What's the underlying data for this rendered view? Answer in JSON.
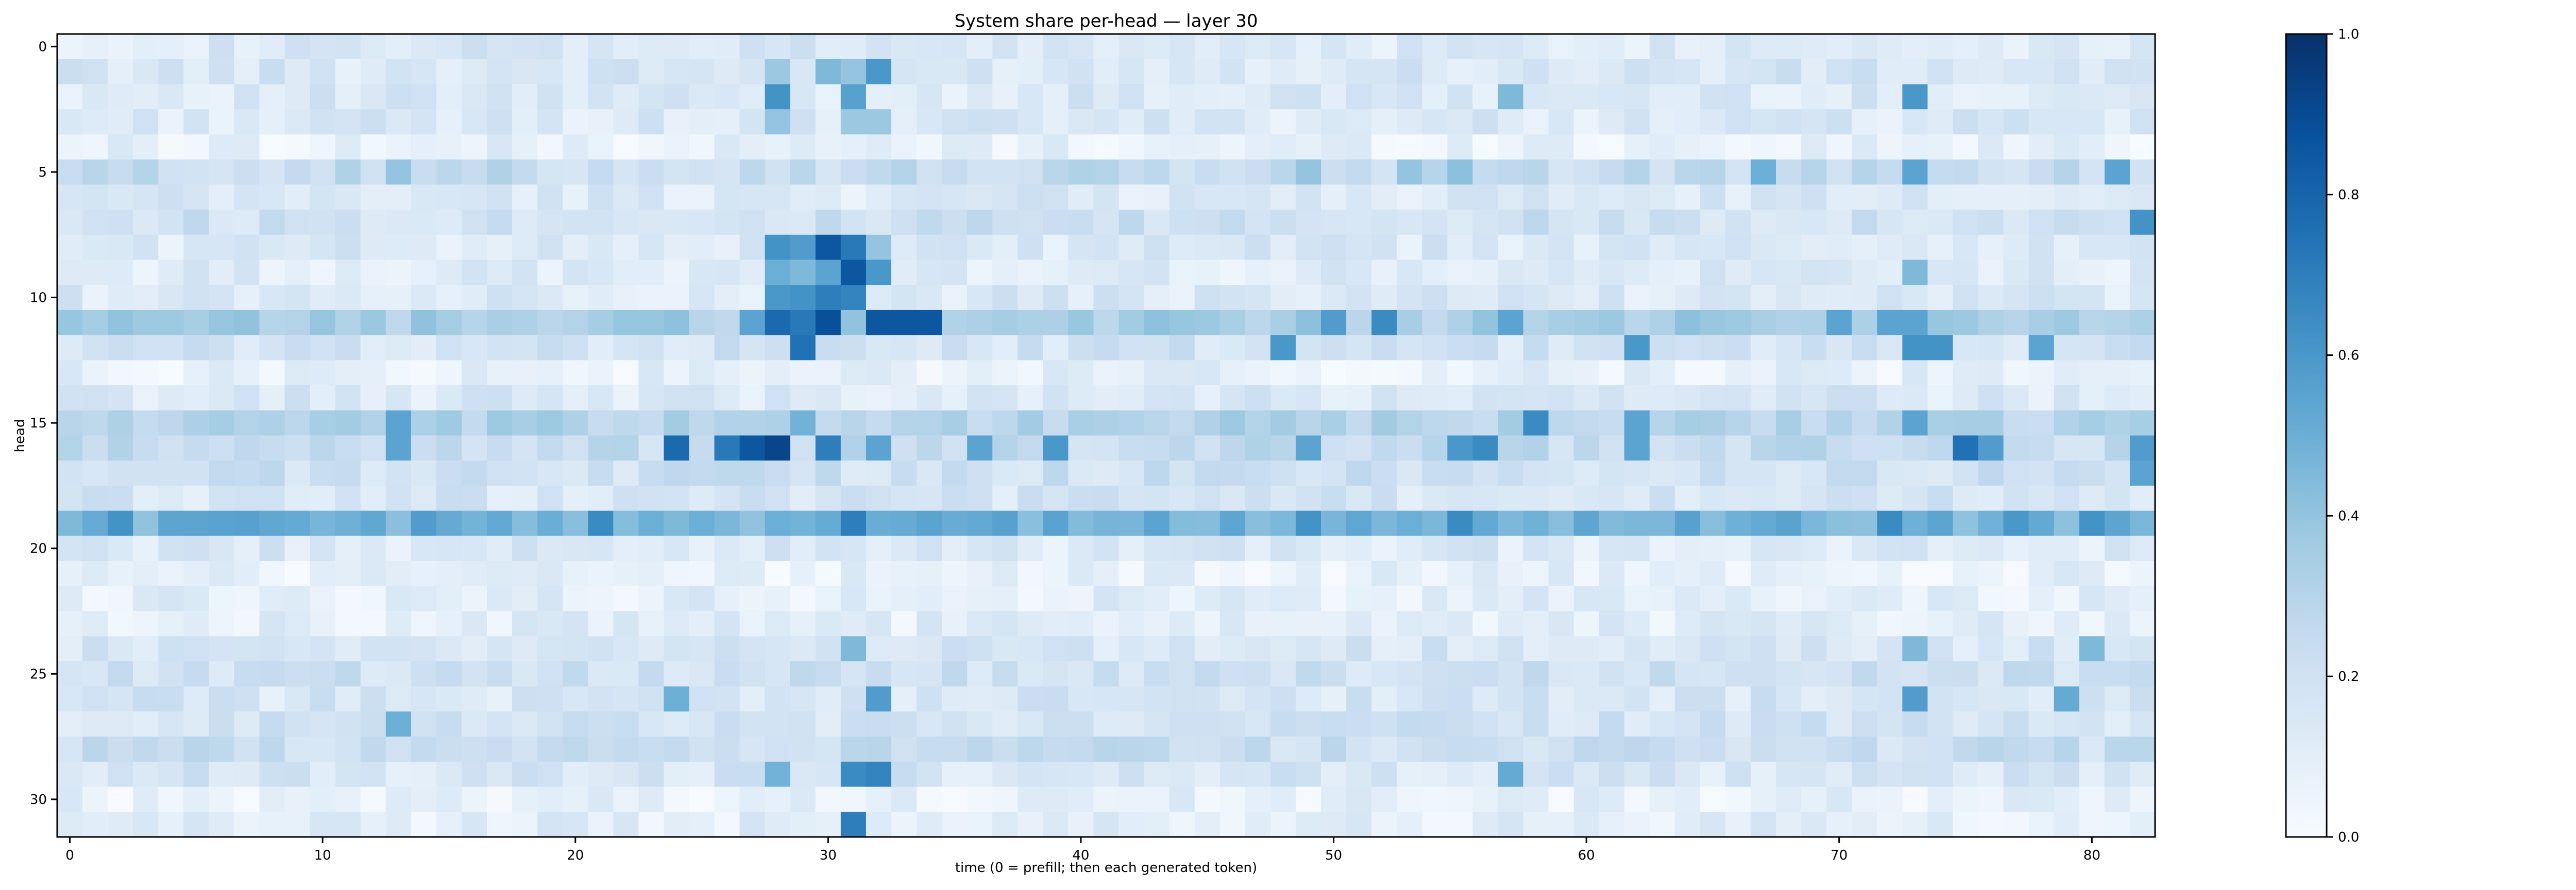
{
  "chart_data": {
    "type": "heatmap",
    "title": "System share per-head — layer 30",
    "xlabel": "time (0 = prefill; then each generated token)",
    "ylabel": "head",
    "n_cols": 83,
    "n_rows": 32,
    "xlim": [
      -0.5,
      82.5
    ],
    "ylim": [
      31.5,
      -0.5
    ],
    "x_ticks": [
      "0",
      "10",
      "20",
      "30",
      "40",
      "50",
      "60",
      "70",
      "80"
    ],
    "y_ticks": [
      "0",
      "5",
      "10",
      "15",
      "20",
      "25",
      "30"
    ],
    "colormap": "Blues",
    "colorbar": {
      "range": [
        0.0,
        1.0
      ],
      "ticks": [
        "0.0",
        "0.2",
        "0.4",
        "0.6",
        "0.8",
        "1.0"
      ]
    },
    "row_base": [
      0.14,
      0.16,
      0.14,
      0.14,
      0.08,
      0.24,
      0.14,
      0.2,
      0.14,
      0.12,
      0.14,
      0.34,
      0.18,
      0.08,
      0.14,
      0.3,
      0.24,
      0.2,
      0.16,
      0.48,
      0.14,
      0.08,
      0.1,
      0.1,
      0.16,
      0.2,
      0.16,
      0.18,
      0.22,
      0.16,
      0.08,
      0.1
    ],
    "overrides": [
      [
        1,
        28,
        0.38
      ],
      [
        1,
        30,
        0.45
      ],
      [
        1,
        31,
        0.4
      ],
      [
        1,
        32,
        0.6
      ],
      [
        2,
        28,
        0.62
      ],
      [
        2,
        31,
        0.56
      ],
      [
        2,
        57,
        0.45
      ],
      [
        2,
        73,
        0.6
      ],
      [
        3,
        28,
        0.4
      ],
      [
        3,
        31,
        0.38
      ],
      [
        3,
        32,
        0.38
      ],
      [
        5,
        13,
        0.4
      ],
      [
        5,
        49,
        0.4
      ],
      [
        5,
        53,
        0.4
      ],
      [
        5,
        55,
        0.42
      ],
      [
        5,
        67,
        0.5
      ],
      [
        5,
        73,
        0.55
      ],
      [
        5,
        81,
        0.55
      ],
      [
        7,
        82,
        0.62
      ],
      [
        8,
        28,
        0.62
      ],
      [
        8,
        29,
        0.58
      ],
      [
        8,
        30,
        0.85
      ],
      [
        8,
        31,
        0.72
      ],
      [
        8,
        32,
        0.4
      ],
      [
        9,
        28,
        0.5
      ],
      [
        9,
        29,
        0.45
      ],
      [
        9,
        30,
        0.55
      ],
      [
        9,
        31,
        0.85
      ],
      [
        9,
        32,
        0.6
      ],
      [
        9,
        73,
        0.45
      ],
      [
        10,
        28,
        0.6
      ],
      [
        10,
        29,
        0.62
      ],
      [
        10,
        30,
        0.7
      ],
      [
        10,
        31,
        0.68
      ],
      [
        11,
        27,
        0.55
      ],
      [
        11,
        28,
        0.78
      ],
      [
        11,
        29,
        0.72
      ],
      [
        11,
        30,
        0.88
      ],
      [
        11,
        32,
        0.85
      ],
      [
        11,
        33,
        0.85
      ],
      [
        11,
        34,
        0.85
      ],
      [
        11,
        50,
        0.58
      ],
      [
        11,
        52,
        0.65
      ],
      [
        11,
        57,
        0.55
      ],
      [
        11,
        70,
        0.55
      ],
      [
        11,
        72,
        0.55
      ],
      [
        11,
        73,
        0.55
      ],
      [
        12,
        29,
        0.75
      ],
      [
        12,
        48,
        0.6
      ],
      [
        12,
        62,
        0.6
      ],
      [
        12,
        73,
        0.62
      ],
      [
        12,
        74,
        0.62
      ],
      [
        12,
        78,
        0.55
      ],
      [
        15,
        13,
        0.55
      ],
      [
        15,
        29,
        0.48
      ],
      [
        15,
        58,
        0.65
      ],
      [
        15,
        62,
        0.55
      ],
      [
        15,
        73,
        0.55
      ],
      [
        16,
        13,
        0.55
      ],
      [
        16,
        24,
        0.78
      ],
      [
        16,
        26,
        0.72
      ],
      [
        16,
        27,
        0.85
      ],
      [
        16,
        28,
        0.92
      ],
      [
        16,
        30,
        0.7
      ],
      [
        16,
        32,
        0.55
      ],
      [
        16,
        36,
        0.55
      ],
      [
        16,
        39,
        0.6
      ],
      [
        16,
        49,
        0.55
      ],
      [
        16,
        55,
        0.6
      ],
      [
        16,
        56,
        0.65
      ],
      [
        16,
        62,
        0.55
      ],
      [
        16,
        75,
        0.75
      ],
      [
        16,
        76,
        0.58
      ],
      [
        16,
        82,
        0.58
      ],
      [
        17,
        82,
        0.55
      ],
      [
        19,
        2,
        0.62
      ],
      [
        19,
        14,
        0.58
      ],
      [
        19,
        21,
        0.65
      ],
      [
        19,
        31,
        0.7
      ],
      [
        19,
        49,
        0.62
      ],
      [
        19,
        55,
        0.65
      ],
      [
        19,
        72,
        0.65
      ],
      [
        19,
        77,
        0.6
      ],
      [
        19,
        80,
        0.62
      ],
      [
        24,
        31,
        0.45
      ],
      [
        24,
        73,
        0.45
      ],
      [
        24,
        80,
        0.45
      ],
      [
        26,
        24,
        0.5
      ],
      [
        26,
        32,
        0.58
      ],
      [
        26,
        73,
        0.58
      ],
      [
        26,
        79,
        0.52
      ],
      [
        27,
        13,
        0.5
      ],
      [
        29,
        28,
        0.48
      ],
      [
        29,
        31,
        0.65
      ],
      [
        29,
        32,
        0.68
      ],
      [
        29,
        57,
        0.52
      ],
      [
        31,
        31,
        0.7
      ]
    ]
  }
}
